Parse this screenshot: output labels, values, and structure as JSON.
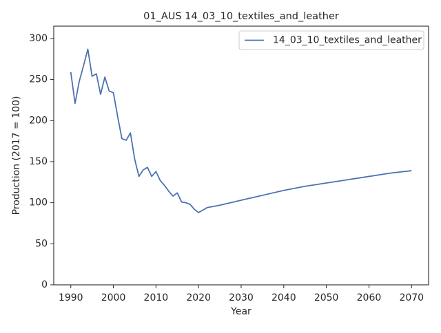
{
  "chart_data": {
    "type": "line",
    "title": "01_AUS 14_03_10_textiles_and_leather",
    "x_label": "Year",
    "y_label": "Production (2017 = 100)",
    "series": [
      {
        "name": "14_03_10_textiles_and_leather",
        "color": "#4c72b0",
        "x": [
          1990,
          1991,
          1992,
          1993,
          1994,
          1995,
          1996,
          1997,
          1998,
          1999,
          2000,
          2001,
          2002,
          2003,
          2004,
          2005,
          2006,
          2007,
          2008,
          2009,
          2010,
          2011,
          2012,
          2013,
          2014,
          2015,
          2016,
          2017,
          2018,
          2019,
          2020,
          2021,
          2022,
          2025,
          2030,
          2035,
          2040,
          2045,
          2050,
          2055,
          2060,
          2065,
          2070
        ],
        "values": [
          259,
          221,
          248,
          267,
          287,
          254,
          257,
          232,
          253,
          236,
          234,
          205,
          178,
          176,
          185,
          153,
          132,
          140,
          143,
          132,
          138,
          127,
          121,
          114,
          108,
          112,
          101,
          100,
          98,
          92,
          88,
          91,
          94,
          97,
          103,
          109,
          115,
          120,
          124,
          128,
          132,
          136,
          139
        ]
      }
    ],
    "xlim": [
      1986,
      2074
    ],
    "ylim": [
      0,
      315
    ],
    "xticks": [
      1990,
      2000,
      2010,
      2020,
      2030,
      2040,
      2050,
      2060,
      2070
    ],
    "yticks": [
      0,
      50,
      100,
      150,
      200,
      250,
      300
    ],
    "legend": "upper right"
  }
}
